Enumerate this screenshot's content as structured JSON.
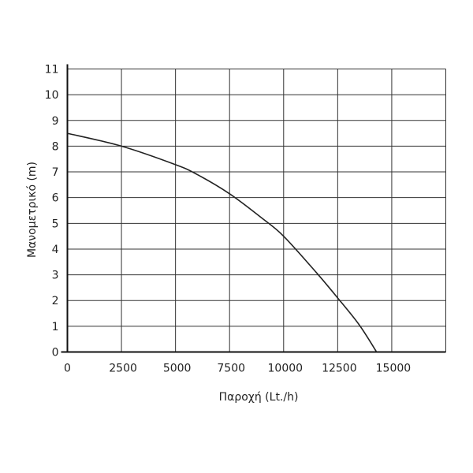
{
  "chart_data": {
    "type": "line",
    "title": "",
    "xlabel": "Παροχή (Lt./h)",
    "ylabel": "Μανομετρικό  (m)",
    "xlim": [
      0,
      17500
    ],
    "ylim": [
      0,
      11
    ],
    "xticks": [
      0,
      2500,
      5000,
      7500,
      10000,
      12500,
      15000
    ],
    "xtick_labels": [
      "0",
      "2500",
      "5000",
      "7500",
      "10000",
      "12500",
      "15000"
    ],
    "yticks": [
      0,
      1,
      2,
      3,
      4,
      5,
      6,
      7,
      8,
      9,
      10,
      11
    ],
    "ytick_labels": [
      "0",
      "1",
      "2",
      "3",
      "4",
      "5",
      "6",
      "7",
      "8",
      "9",
      "10",
      "11"
    ],
    "grid": true,
    "line_color": "#222222",
    "series": [
      {
        "x": [
          0,
          2500,
          5000,
          6000,
          7500,
          9000,
          10000,
          11500,
          12500,
          13500,
          14300
        ],
        "y": [
          8.5,
          8.0,
          7.28,
          6.9,
          6.15,
          5.2,
          4.5,
          3.1,
          2.1,
          1.05,
          0
        ]
      }
    ]
  }
}
